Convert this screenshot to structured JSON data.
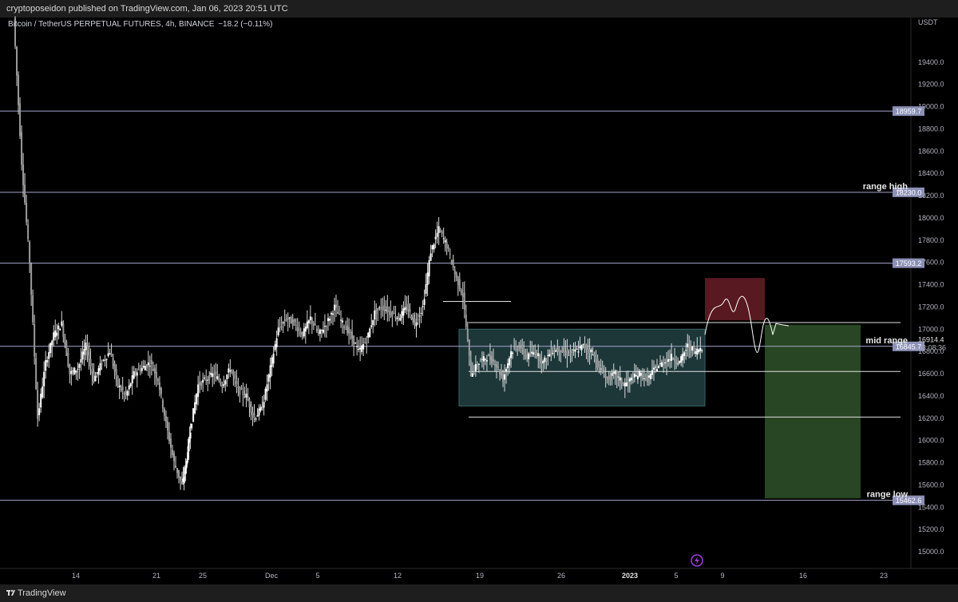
{
  "header": {
    "published": "cryptoposeidon published on TradingView.com, Jan 06, 2023 20:51 UTC"
  },
  "legend": {
    "symbol": "Bitcoin / TetherUS PERPETUAL FUTURES, 4h, BINANCE",
    "change": "−18.2 (−0.11%)"
  },
  "footer": {
    "brand": "TradingView"
  },
  "colors": {
    "background": "#000000",
    "candles": "#d9d9d9",
    "hline": "#a4a7c9",
    "label_bg": "#8c90b5",
    "box_blue": "#1f3a3d",
    "box_red": "#5e1a22",
    "box_green": "#2a4a25",
    "lightning": "#9b3fd6"
  },
  "chart_data": {
    "type": "candlestick",
    "currency": "USDT",
    "ylim": [
      14850,
      19800
    ],
    "price_ticks": [
      15000,
      15200,
      15400,
      15600,
      15800,
      16000,
      16200,
      16400,
      16600,
      16800,
      17000,
      17200,
      17400,
      17600,
      17800,
      18000,
      18200,
      18400,
      18600,
      18800,
      19000,
      19200,
      19400
    ],
    "x_ticks": [
      "14",
      "21",
      "25",
      "Dec",
      "5",
      "12",
      "19",
      "26",
      "2023",
      "5",
      "9",
      "16",
      "23"
    ],
    "horizontal_levels": [
      {
        "price": 18959.7,
        "label": "18959.7",
        "annotation": ""
      },
      {
        "price": 18230.0,
        "label": "18230.0",
        "annotation": "range high"
      },
      {
        "price": 17593.2,
        "label": "17593.2",
        "annotation": ""
      },
      {
        "price": 16845.7,
        "label": "16845.7",
        "annotation": "mid range"
      },
      {
        "price": 15462.6,
        "label": "15462.6",
        "annotation": "range low"
      }
    ],
    "last_price": {
      "price": "16914.4",
      "countdown": "03:08:36"
    },
    "drawn_levels": [
      17250,
      17060,
      16620,
      16210
    ],
    "boxes": [
      {
        "kind": "range",
        "color": "#1f3a3d",
        "top": 17000,
        "bottom": 16310
      },
      {
        "kind": "stop",
        "color": "#5e1a22",
        "top": 17460,
        "bottom": 17080
      },
      {
        "kind": "target",
        "color": "#2a4a25",
        "top": 17040,
        "bottom": 15480
      }
    ],
    "price_path": [
      [
        0,
        19800
      ],
      [
        10,
        18500
      ],
      [
        20,
        17600
      ],
      [
        30,
        16200
      ],
      [
        40,
        16700
      ],
      [
        50,
        16950
      ],
      [
        60,
        17050
      ],
      [
        70,
        16600
      ],
      [
        80,
        16650
      ],
      [
        90,
        16850
      ],
      [
        100,
        16550
      ],
      [
        110,
        16700
      ],
      [
        120,
        16800
      ],
      [
        130,
        16500
      ],
      [
        140,
        16400
      ],
      [
        150,
        16600
      ],
      [
        160,
        16650
      ],
      [
        170,
        16700
      ],
      [
        180,
        16550
      ],
      [
        190,
        16150
      ],
      [
        200,
        15800
      ],
      [
        210,
        15600
      ],
      [
        215,
        15800
      ],
      [
        220,
        16100
      ],
      [
        230,
        16500
      ],
      [
        240,
        16550
      ],
      [
        250,
        16600
      ],
      [
        260,
        16500
      ],
      [
        270,
        16650
      ],
      [
        280,
        16450
      ],
      [
        290,
        16400
      ],
      [
        300,
        16200
      ],
      [
        310,
        16300
      ],
      [
        320,
        16650
      ],
      [
        330,
        17000
      ],
      [
        340,
        17100
      ],
      [
        350,
        17050
      ],
      [
        360,
        16950
      ],
      [
        370,
        17100
      ],
      [
        380,
        16950
      ],
      [
        390,
        17050
      ],
      [
        400,
        17200
      ],
      [
        410,
        17050
      ],
      [
        420,
        16950
      ],
      [
        430,
        16800
      ],
      [
        440,
        16900
      ],
      [
        450,
        17150
      ],
      [
        460,
        17200
      ],
      [
        470,
        17150
      ],
      [
        480,
        17100
      ],
      [
        490,
        17200
      ],
      [
        500,
        17050
      ],
      [
        510,
        17200
      ],
      [
        520,
        17700
      ],
      [
        530,
        17900
      ],
      [
        540,
        17750
      ],
      [
        550,
        17500
      ],
      [
        560,
        17300
      ],
      [
        570,
        16600
      ],
      [
        580,
        16700
      ],
      [
        590,
        16750
      ],
      [
        600,
        16700
      ],
      [
        610,
        16550
      ],
      [
        620,
        16800
      ],
      [
        630,
        16850
      ],
      [
        640,
        16750
      ],
      [
        650,
        16800
      ],
      [
        660,
        16700
      ],
      [
        670,
        16800
      ],
      [
        680,
        16820
      ],
      [
        690,
        16780
      ],
      [
        700,
        16800
      ],
      [
        710,
        16850
      ],
      [
        720,
        16800
      ],
      [
        730,
        16650
      ],
      [
        740,
        16550
      ],
      [
        750,
        16600
      ],
      [
        760,
        16500
      ],
      [
        770,
        16550
      ],
      [
        780,
        16600
      ],
      [
        790,
        16550
      ],
      [
        800,
        16650
      ],
      [
        810,
        16700
      ],
      [
        820,
        16750
      ],
      [
        830,
        16700
      ],
      [
        840,
        16850
      ],
      [
        850,
        16800
      ],
      [
        860,
        16850
      ],
      [
        870,
        16900
      ]
    ]
  }
}
